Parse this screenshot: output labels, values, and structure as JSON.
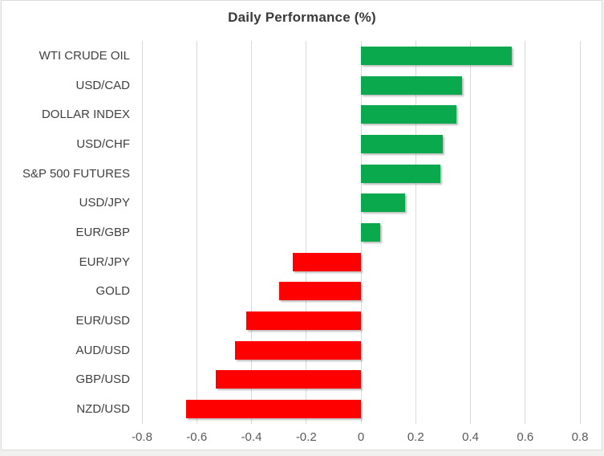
{
  "title": "Daily Performance (%)",
  "colors": {
    "positive": "#0ba94d",
    "negative": "#fe0000",
    "gridline": "#d9d9d9",
    "title_text": "#3a3a3a",
    "category_text": "#404040",
    "tick_text": "#595959",
    "background": "#ffffff"
  },
  "chart_data": {
    "type": "bar",
    "orientation": "horizontal",
    "title": "Daily Performance (%)",
    "unit": "%",
    "categories": [
      "WTI CRUDE OIL",
      "USD/CAD",
      "DOLLAR INDEX",
      "USD/CHF",
      "S&P 500 FUTURES",
      "USD/JPY",
      "EUR/GBP",
      "EUR/JPY",
      "GOLD",
      "EUR/USD",
      "AUD/USD",
      "GBP/USD",
      "NZD/USD"
    ],
    "values": [
      0.55,
      0.37,
      0.35,
      0.3,
      0.29,
      0.16,
      0.07,
      -0.25,
      -0.3,
      -0.42,
      -0.46,
      -0.53,
      -0.64
    ],
    "xlim": [
      -0.8,
      0.8
    ],
    "xtick_values": [
      -0.8,
      -0.6,
      -0.4,
      -0.2,
      0,
      0.2,
      0.4,
      0.6,
      0.8
    ],
    "xtick_labels": [
      "-0.8",
      "-0.6",
      "-0.4",
      "-0.2",
      "0",
      "0.2",
      "0.4",
      "0.6",
      "0.8"
    ],
    "grid": true,
    "legend": false
  }
}
